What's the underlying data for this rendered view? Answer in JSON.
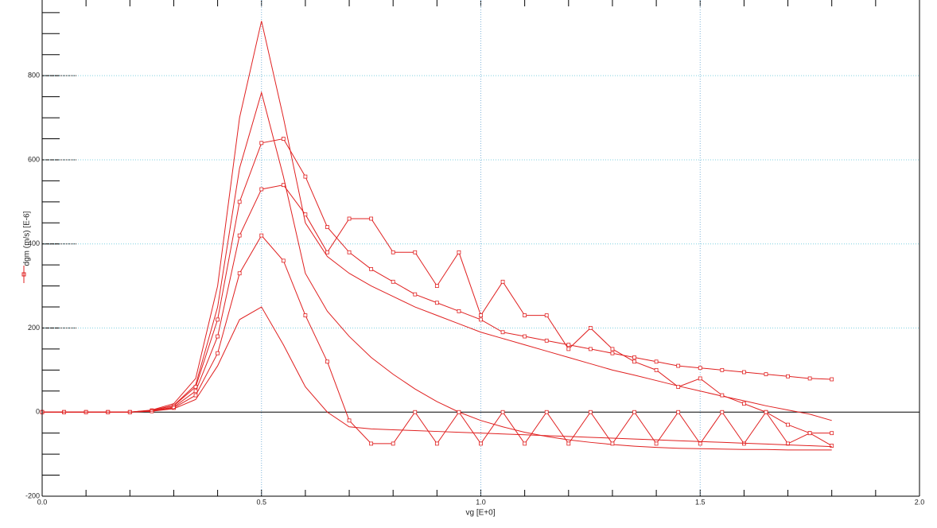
{
  "chart_data": {
    "type": "line",
    "xlabel": "vg  [E+0]",
    "ylabel": "dgm (m/s)  [E-6]",
    "xlim": [
      0,
      2
    ],
    "ylim": [
      -200,
      980
    ],
    "xticks": [
      {
        "value": 0,
        "label": "0.0"
      },
      {
        "value": 0.5,
        "label": "0.5"
      },
      {
        "value": 1,
        "label": "1.0"
      },
      {
        "value": 1.5,
        "label": "1.5"
      },
      {
        "value": 2,
        "label": "2.0"
      }
    ],
    "yticks": [
      -200,
      0,
      200,
      400,
      600,
      800
    ],
    "grid": true,
    "x": [
      0,
      0.05,
      0.1,
      0.15,
      0.2,
      0.25,
      0.3,
      0.35,
      0.4,
      0.45,
      0.5,
      0.55,
      0.6,
      0.65,
      0.7,
      0.75,
      0.8,
      0.85,
      0.9,
      0.95,
      1,
      1.05,
      1.1,
      1.15,
      1.2,
      1.25,
      1.3,
      1.35,
      1.4,
      1.45,
      1.5,
      1.55,
      1.6,
      1.65,
      1.7,
      1.75,
      1.8
    ],
    "series": [
      {
        "color": "#e02020",
        "markers": false,
        "values": [
          0,
          0,
          0,
          0,
          0,
          5,
          20,
          80,
          300,
          700,
          930,
          700,
          450,
          370,
          330,
          300,
          275,
          250,
          230,
          210,
          190,
          175,
          160,
          145,
          130,
          115,
          100,
          88,
          75,
          62,
          50,
          38,
          27,
          15,
          5,
          -5,
          -20
        ]
      },
      {
        "color": "#e02020",
        "markers": false,
        "values": [
          0,
          0,
          0,
          0,
          0,
          4,
          16,
          65,
          250,
          580,
          760,
          560,
          330,
          240,
          180,
          130,
          90,
          55,
          25,
          0,
          -20,
          -35,
          -48,
          -58,
          -66,
          -72,
          -77,
          -81,
          -84,
          -86,
          -87,
          -88,
          -89,
          -89,
          -90,
          -90,
          -90
        ]
      },
      {
        "color": "#e02020",
        "markers": true,
        "values": [
          0,
          0,
          0,
          0,
          0,
          4,
          15,
          60,
          220,
          500,
          640,
          650,
          560,
          440,
          380,
          340,
          310,
          280,
          260,
          240,
          220,
          190,
          180,
          170,
          160,
          150,
          140,
          130,
          120,
          110,
          105,
          100,
          95,
          90,
          85,
          80,
          78
        ]
      },
      {
        "color": "#e02020",
        "markers": true,
        "values": [
          0,
          0,
          0,
          0,
          0,
          3,
          12,
          50,
          180,
          420,
          530,
          540,
          470,
          380,
          460,
          460,
          380,
          380,
          300,
          380,
          230,
          310,
          230,
          230,
          150,
          200,
          150,
          120,
          100,
          60,
          80,
          40,
          20,
          0,
          -30,
          -50,
          -80
        ]
      },
      {
        "color": "#e02020",
        "markers": true,
        "values": [
          0,
          0,
          0,
          0,
          0,
          2,
          10,
          40,
          140,
          330,
          420,
          360,
          230,
          120,
          -20,
          -75,
          -75,
          0,
          -75,
          0,
          -75,
          0,
          -75,
          0,
          -75,
          0,
          -75,
          0,
          -75,
          0,
          -75,
          0,
          -75,
          0,
          -75,
          -50,
          -50
        ]
      },
      {
        "color": "#e02020",
        "markers": false,
        "values": [
          0,
          0,
          0,
          0,
          0,
          2,
          8,
          30,
          110,
          220,
          250,
          160,
          60,
          0,
          -35,
          -40,
          -42,
          -44,
          -46,
          -48,
          -50,
          -52,
          -54,
          -56,
          -58,
          -60,
          -62,
          -64,
          -66,
          -68,
          -70,
          -72,
          -74,
          -76,
          -78,
          -80,
          -82
        ]
      }
    ]
  }
}
